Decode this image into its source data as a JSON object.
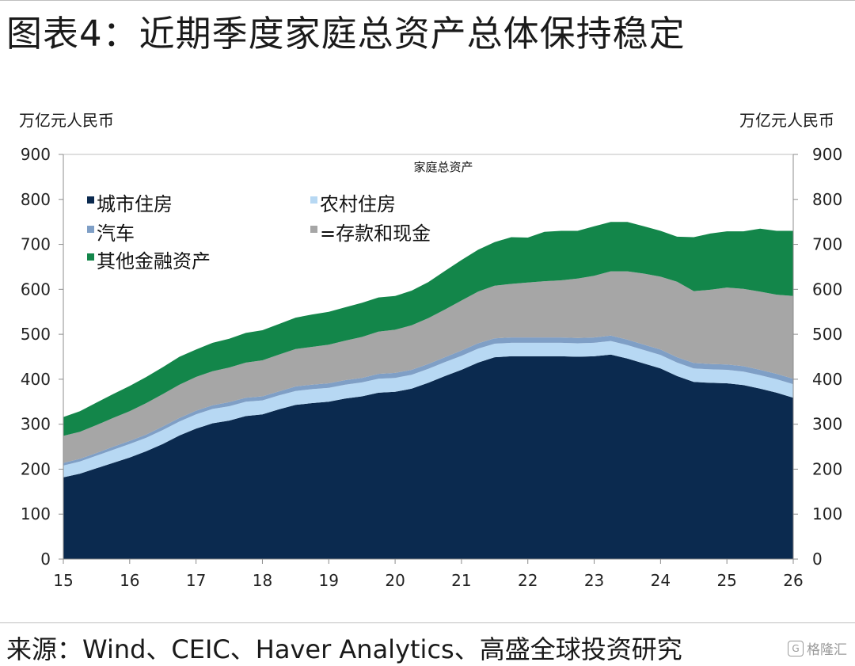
{
  "page_title": "图表4：近期季度家庭总资产总体保持稳定",
  "source": "来源：Wind、CEIC、Haver Analytics、高盛全球投资研究",
  "watermark": {
    "icon": "gelonghui-logo-icon",
    "text": "格隆汇"
  },
  "chart_data": {
    "type": "area",
    "stacked": true,
    "title": "家庭总资产",
    "ylabel_left": "万亿元人民币",
    "ylabel_right": "万亿元人民币",
    "ylim": [
      0,
      900
    ],
    "yticks": [
      0,
      100,
      200,
      300,
      400,
      500,
      600,
      700,
      800,
      900
    ],
    "xlim": [
      15,
      26
    ],
    "xticks": [
      "15",
      "16",
      "17",
      "18",
      "19",
      "20",
      "21",
      "22",
      "23",
      "24",
      "25",
      "26"
    ],
    "grid": false,
    "legend_position": "top-left",
    "x": [
      15,
      15.25,
      15.5,
      15.75,
      16,
      16.25,
      16.5,
      16.75,
      17,
      17.25,
      17.5,
      17.75,
      18,
      18.25,
      18.5,
      18.75,
      19,
      19.25,
      19.5,
      19.75,
      20,
      20.25,
      20.5,
      20.75,
      21,
      21.25,
      21.5,
      21.75,
      22,
      22.25,
      22.5,
      22.75,
      23,
      23.25,
      23.5,
      23.75,
      24,
      24.25,
      24.5,
      24.75,
      25,
      25.25,
      25.5,
      25.75,
      26
    ],
    "series": [
      {
        "name": "城市住房",
        "color": "#0b2a4f",
        "values": [
          182,
          190,
          202,
          214,
          226,
          240,
          256,
          275,
          290,
          302,
          308,
          318,
          322,
          333,
          343,
          347,
          350,
          357,
          362,
          370,
          372,
          379,
          392,
          407,
          421,
          437,
          449,
          451,
          451,
          451,
          451,
          450,
          451,
          455,
          446,
          435,
          424,
          407,
          394,
          392,
          391,
          387,
          379,
          370,
          359
        ]
      },
      {
        "name": "农村住房",
        "color": "#b7d8f3",
        "values": [
          26,
          27,
          28,
          29,
          30,
          30,
          31,
          31,
          32,
          32,
          32,
          32,
          31,
          31,
          31,
          31,
          31,
          31,
          31,
          31,
          31,
          31,
          31,
          31,
          31,
          31,
          30,
          30,
          30,
          30,
          30,
          30,
          30,
          30,
          30,
          30,
          30,
          30,
          30,
          30,
          30,
          30,
          30,
          30,
          30
        ]
      },
      {
        "name": "汽车",
        "color": "#7f9fc6",
        "values": [
          6,
          6,
          6,
          7,
          7,
          7,
          8,
          8,
          8,
          8,
          9,
          9,
          9,
          9,
          10,
          10,
          10,
          10,
          10,
          11,
          11,
          11,
          11,
          11,
          12,
          12,
          12,
          12,
          12,
          12,
          12,
          12,
          12,
          12,
          12,
          12,
          12,
          12,
          12,
          12,
          12,
          12,
          12,
          12,
          12
        ]
      },
      {
        "name": "存款和现金",
        "color": "#a6a6a6",
        "values": [
          60,
          60,
          62,
          64,
          66,
          70,
          72,
          74,
          75,
          76,
          77,
          78,
          80,
          82,
          83,
          84,
          86,
          88,
          91,
          94,
          96,
          99,
          102,
          106,
          111,
          115,
          117,
          119,
          122,
          125,
          127,
          132,
          137,
          143,
          152,
          158,
          162,
          168,
          160,
          165,
          171,
          172,
          174,
          176,
          184
        ]
      },
      {
        "name": "其他金融资产",
        "color": "#13864a",
        "values": [
          42,
          46,
          50,
          53,
          56,
          58,
          60,
          62,
          61,
          63,
          64,
          66,
          67,
          68,
          70,
          72,
          73,
          74,
          76,
          76,
          75,
          77,
          80,
          86,
          90,
          93,
          97,
          104,
          100,
          110,
          110,
          106,
          110,
          110,
          110,
          105,
          102,
          100,
          120,
          125,
          125,
          128,
          140,
          142,
          145
        ]
      }
    ]
  }
}
